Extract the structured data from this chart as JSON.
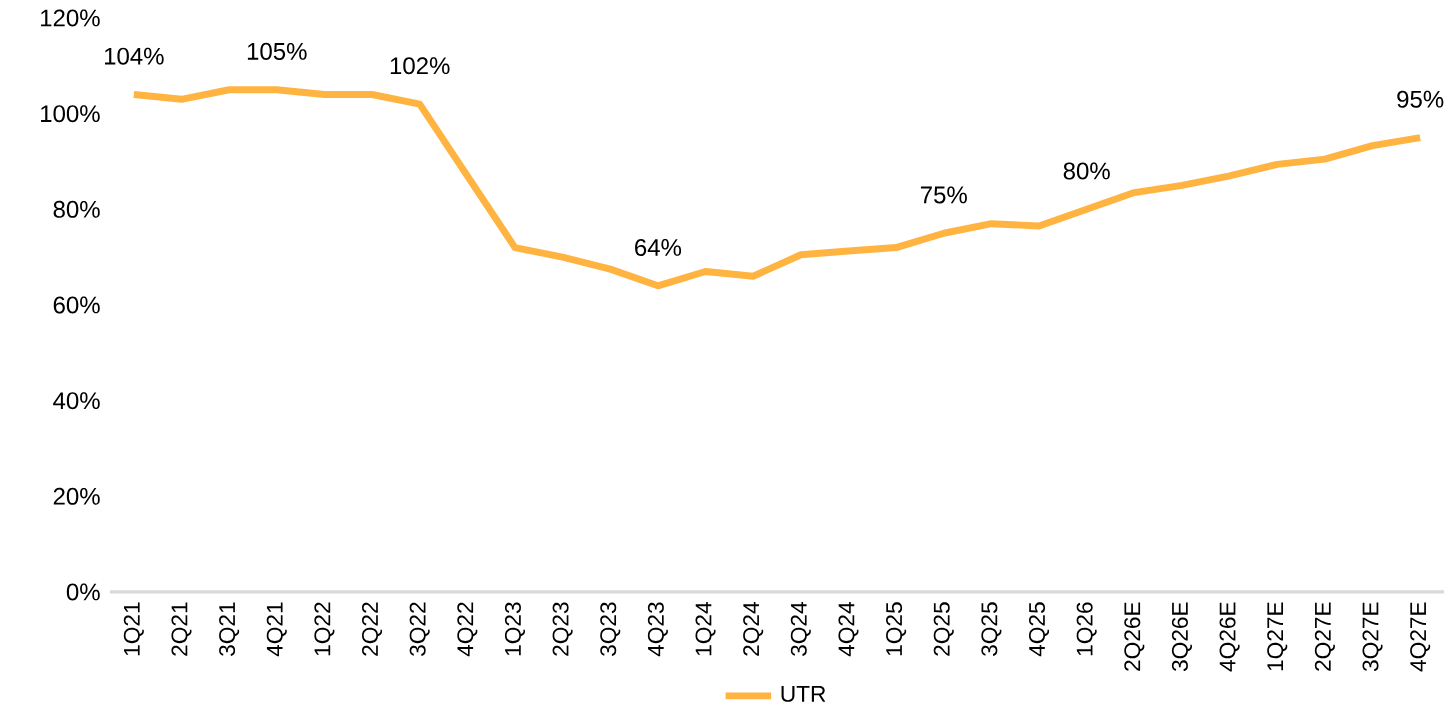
{
  "chart_data": {
    "type": "line",
    "categories": [
      "1Q21",
      "2Q21",
      "3Q21",
      "4Q21",
      "1Q22",
      "2Q22",
      "3Q22",
      "4Q22",
      "1Q23",
      "2Q23",
      "3Q23",
      "4Q23",
      "1Q24",
      "2Q24",
      "3Q24",
      "4Q24",
      "1Q25",
      "2Q25",
      "3Q25",
      "4Q25",
      "1Q26",
      "2Q26E",
      "3Q26E",
      "4Q26E",
      "1Q27E",
      "2Q27E",
      "3Q27E",
      "4Q27E"
    ],
    "series": [
      {
        "name": "UTR",
        "color": "#ffb442",
        "values": [
          104,
          103,
          105,
          105,
          104,
          104,
          102,
          87,
          72,
          70,
          67.5,
          64,
          67,
          66,
          70.5,
          71.3,
          72,
          75,
          77,
          76.5,
          80,
          83.5,
          85,
          87,
          89.4,
          90.5,
          93.3,
          95
        ],
        "value_labels": [
          "104%",
          null,
          null,
          "105%",
          null,
          null,
          "102%",
          null,
          null,
          null,
          null,
          "64%",
          null,
          null,
          null,
          null,
          null,
          "75%",
          null,
          null,
          "80%",
          null,
          null,
          null,
          null,
          null,
          null,
          "95%"
        ]
      }
    ],
    "ylim": [
      0,
      120
    ],
    "yticks": [
      {
        "value": 0,
        "label": "0%"
      },
      {
        "value": 20,
        "label": "20%"
      },
      {
        "value": 40,
        "label": "40%"
      },
      {
        "value": 60,
        "label": "60%"
      },
      {
        "value": 80,
        "label": "80%"
      },
      {
        "value": 100,
        "label": "100%"
      },
      {
        "value": 120,
        "label": "120%"
      }
    ],
    "legend": "bottom",
    "marker": "none",
    "line_style": "solid"
  }
}
